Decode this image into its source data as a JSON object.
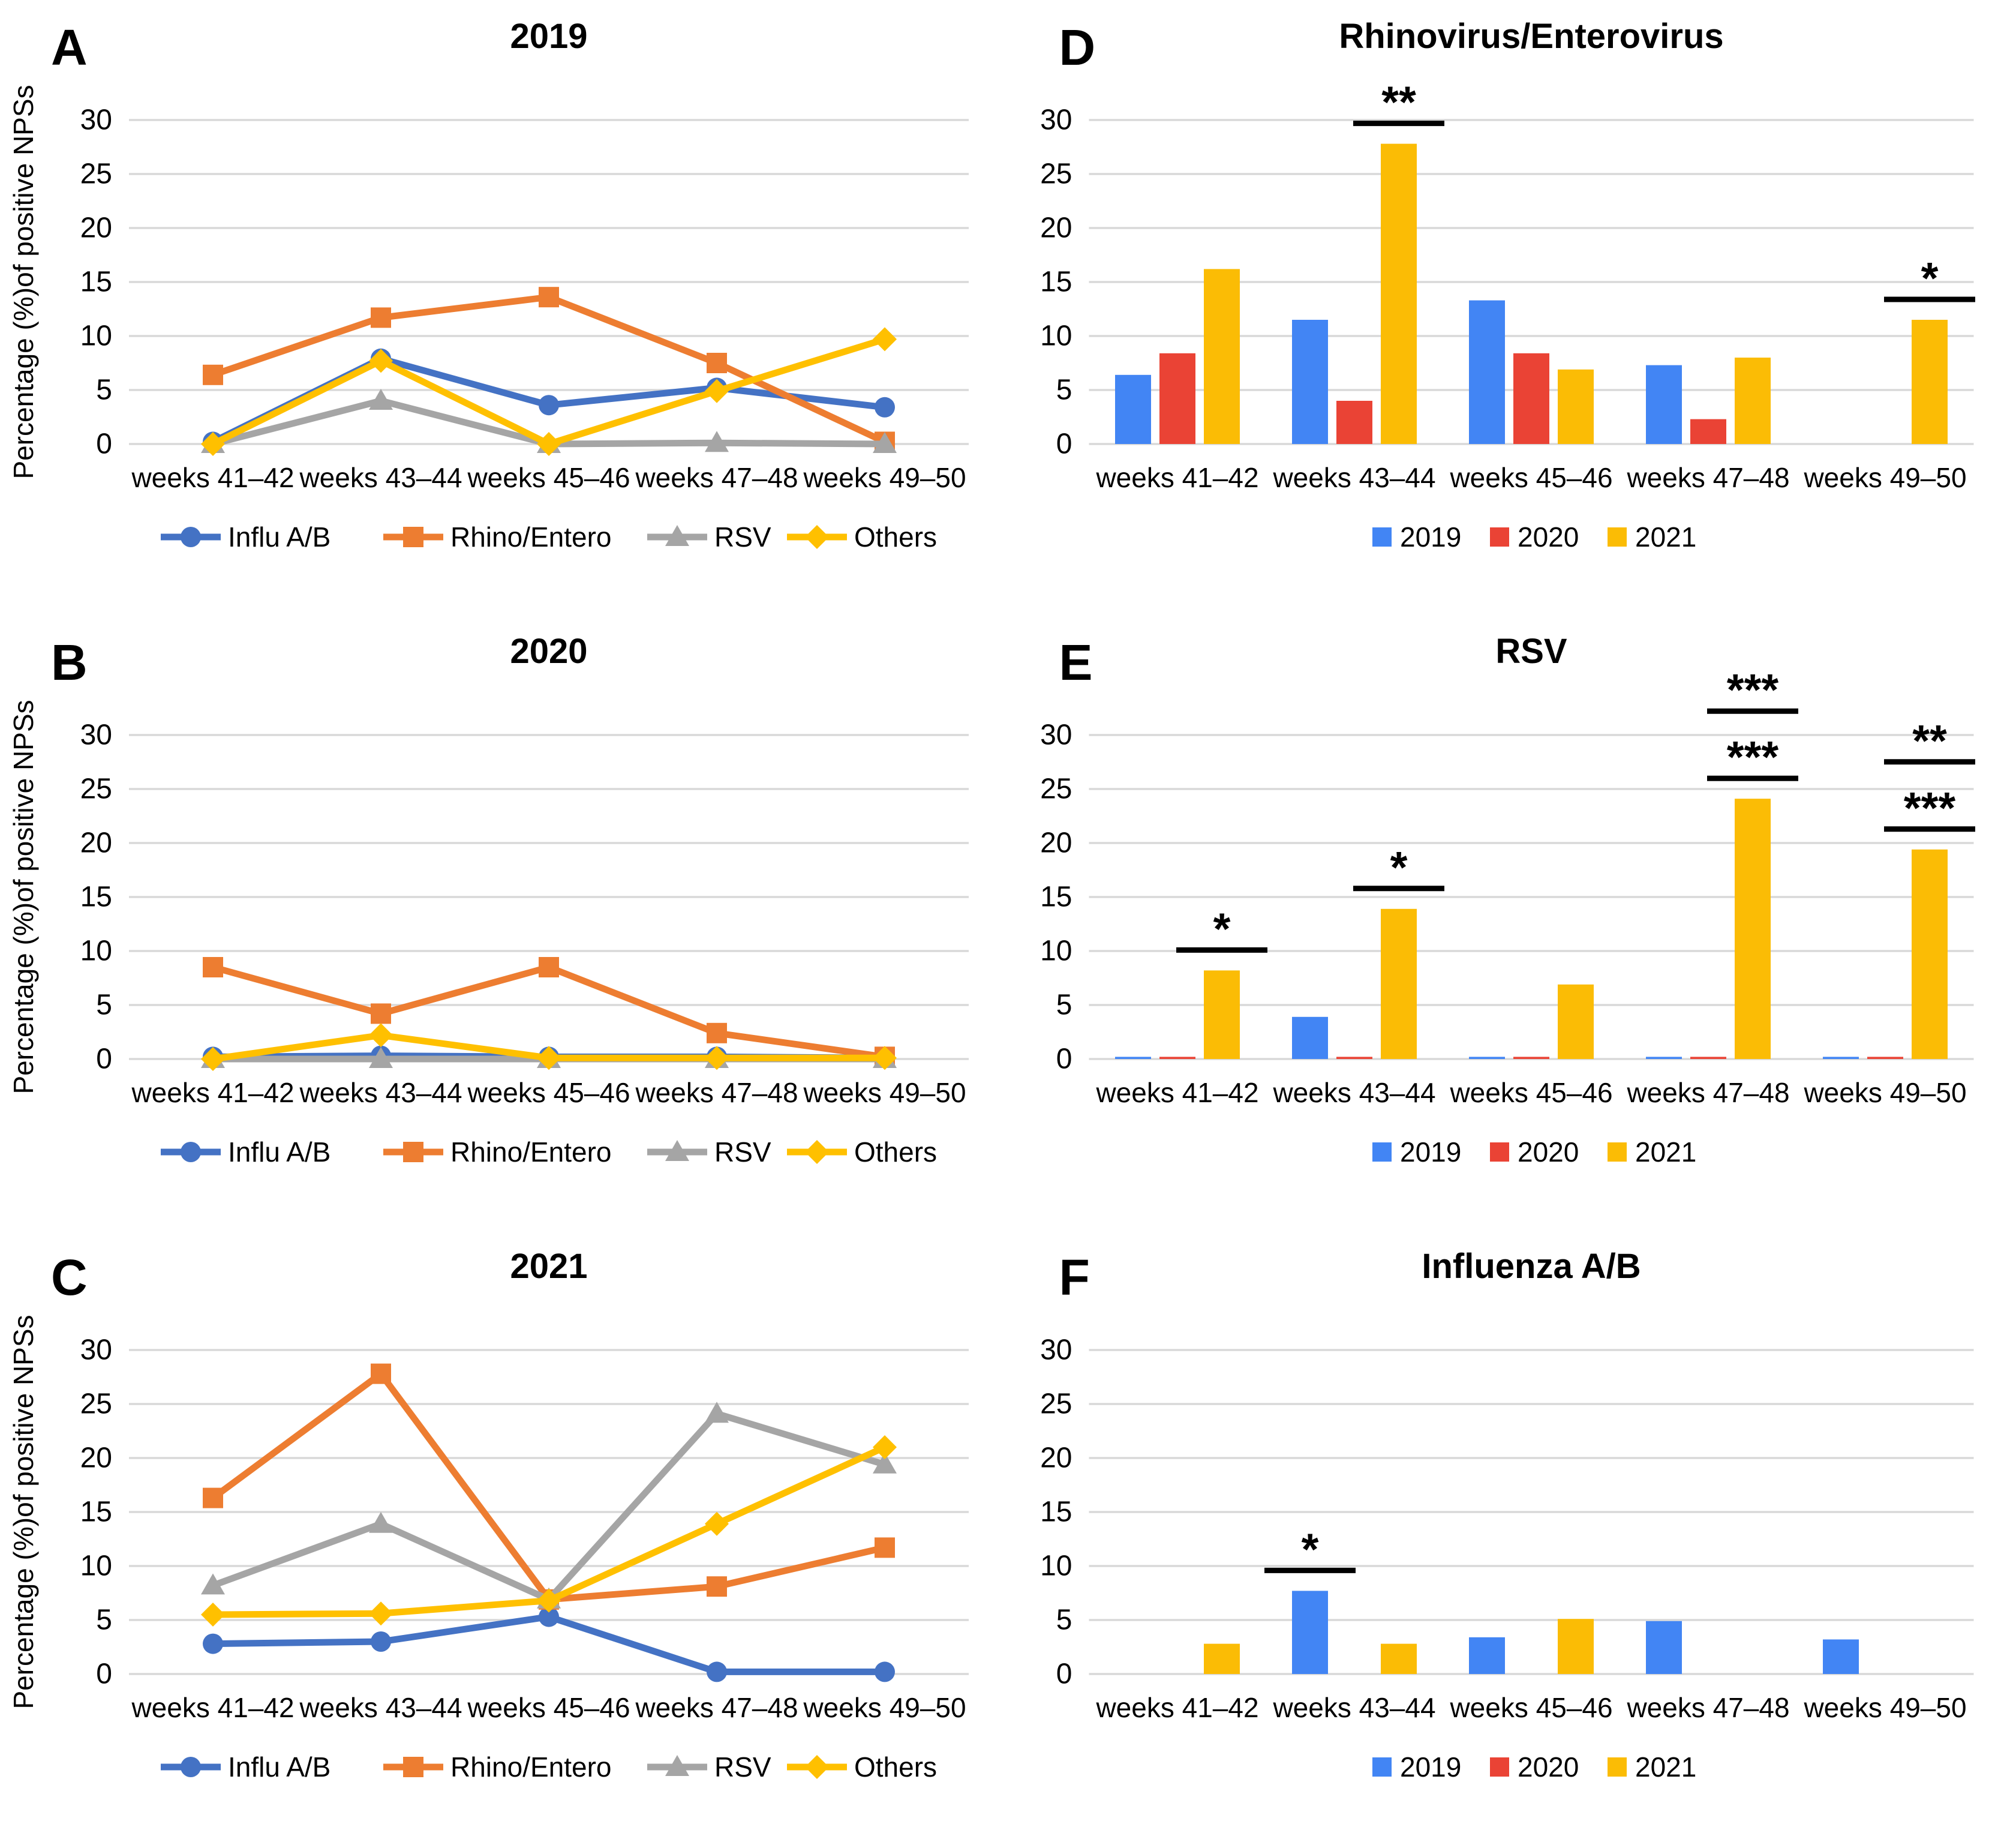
{
  "figure": {
    "description": "Six-panel figure of respiratory virus positivity",
    "categories": [
      "weeks 41–42",
      "weeks 43–44",
      "weeks 45–46",
      "weeks 47–48",
      "weeks 49–50"
    ],
    "colors": {
      "line_blue": "#4472C4",
      "line_orange": "#ED7D31",
      "line_gray": "#A5A5A5",
      "line_yellow": "#FFC000",
      "bar_blue": "#4285F4",
      "bar_red": "#EA4335",
      "bar_yellow": "#FBBC05",
      "gridline": "#D9D9D9",
      "text": "#000000"
    }
  },
  "chart_data": [
    {
      "panel_label": "A",
      "type": "line",
      "title": "2019",
      "ylabel": "Percentage (%)of positive NPSs",
      "ylim": [
        0,
        30
      ],
      "yticks": [
        0,
        5,
        10,
        15,
        20,
        25,
        30
      ],
      "grid": true,
      "legend_position": "bottom",
      "categories": [
        "weeks 41–42",
        "weeks 43–44",
        "weeks 45–46",
        "weeks 47–48",
        "weeks 49–50"
      ],
      "series": [
        {
          "name": "Influ A/B",
          "color": "#4472C4",
          "marker": "circle",
          "values": [
            0.2,
            7.9,
            3.6,
            5.2,
            3.4
          ]
        },
        {
          "name": "Rhino/Entero",
          "color": "#ED7D31",
          "marker": "square",
          "values": [
            6.4,
            11.7,
            13.6,
            7.5,
            0.2
          ]
        },
        {
          "name": "RSV",
          "color": "#A5A5A5",
          "marker": "triangle",
          "values": [
            0,
            4.0,
            0,
            0.1,
            0
          ]
        },
        {
          "name": "Others",
          "color": "#FFC000",
          "marker": "diamond",
          "values": [
            0,
            7.7,
            0,
            4.9,
            9.7
          ]
        }
      ]
    },
    {
      "panel_label": "B",
      "type": "line",
      "title": "2020",
      "ylabel": "Percentage (%)of positive NPSs",
      "ylim": [
        0,
        30
      ],
      "yticks": [
        0,
        5,
        10,
        15,
        20,
        25,
        30
      ],
      "grid": true,
      "legend_position": "bottom",
      "categories": [
        "weeks 41–42",
        "weeks 43–44",
        "weeks 45–46",
        "weeks 47–48",
        "weeks 49–50"
      ],
      "series": [
        {
          "name": "Influ A/B",
          "color": "#4472C4",
          "marker": "circle",
          "values": [
            0.2,
            0.3,
            0.2,
            0.2,
            0.1
          ]
        },
        {
          "name": "Rhino/Entero",
          "color": "#ED7D31",
          "marker": "square",
          "values": [
            8.5,
            4.2,
            8.5,
            2.4,
            0.2
          ]
        },
        {
          "name": "RSV",
          "color": "#A5A5A5",
          "marker": "triangle",
          "values": [
            0,
            0,
            0,
            0,
            0
          ]
        },
        {
          "name": "Others",
          "color": "#FFC000",
          "marker": "diamond",
          "values": [
            0,
            2.2,
            0.1,
            0.1,
            0.1
          ]
        }
      ]
    },
    {
      "panel_label": "C",
      "type": "line",
      "title": "2021",
      "ylabel": "Percentage (%)of positive NPSs",
      "ylim": [
        0,
        30
      ],
      "yticks": [
        0,
        5,
        10,
        15,
        20,
        25,
        30
      ],
      "grid": true,
      "legend_position": "bottom",
      "categories": [
        "weeks 41–42",
        "weeks 43–44",
        "weeks 45–46",
        "weeks 47–48",
        "weeks 49–50"
      ],
      "series": [
        {
          "name": "Influ A/B",
          "color": "#4472C4",
          "marker": "circle",
          "values": [
            2.8,
            3.0,
            5.3,
            0.2,
            0.2
          ]
        },
        {
          "name": "Rhino/Entero",
          "color": "#ED7D31",
          "marker": "square",
          "values": [
            16.3,
            27.8,
            6.9,
            8.1,
            11.7
          ]
        },
        {
          "name": "RSV",
          "color": "#A5A5A5",
          "marker": "triangle",
          "values": [
            8.2,
            13.9,
            6.9,
            24.1,
            19.4
          ]
        },
        {
          "name": "Others",
          "color": "#FFC000",
          "marker": "diamond",
          "values": [
            5.5,
            5.6,
            6.8,
            13.9,
            21.0
          ]
        }
      ]
    },
    {
      "panel_label": "D",
      "type": "bar",
      "title": "Rhinovirus/Enterovirus",
      "ylim": [
        0,
        30
      ],
      "yticks": [
        0,
        5,
        10,
        15,
        20,
        25,
        30
      ],
      "grid": true,
      "legend_position": "bottom",
      "categories": [
        "weeks 41–42",
        "weeks 43–44",
        "weeks 45–46",
        "weeks 47–48",
        "weeks 49–50"
      ],
      "series": [
        {
          "name": "2019",
          "color": "#4285F4",
          "values": [
            6.4,
            11.5,
            13.3,
            7.3,
            0
          ]
        },
        {
          "name": "2020",
          "color": "#EA4335",
          "values": [
            8.4,
            4.0,
            8.4,
            2.3,
            0
          ]
        },
        {
          "name": "2021",
          "color": "#FBBC05",
          "values": [
            16.2,
            27.8,
            6.9,
            8.0,
            11.5
          ]
        }
      ],
      "annotations": [
        {
          "category": 1,
          "series": 2,
          "labels": [
            "**"
          ]
        },
        {
          "category": 4,
          "series": 2,
          "labels": [
            "*"
          ]
        }
      ]
    },
    {
      "panel_label": "E",
      "type": "bar",
      "title": "RSV",
      "ylim": [
        0,
        30
      ],
      "yticks": [
        0,
        5,
        10,
        15,
        20,
        25,
        30
      ],
      "grid": true,
      "legend_position": "bottom",
      "categories": [
        "weeks 41–42",
        "weeks 43–44",
        "weeks 45–46",
        "weeks 47–48",
        "weeks 49–50"
      ],
      "series": [
        {
          "name": "2019",
          "color": "#4285F4",
          "values": [
            0.2,
            3.9,
            0.2,
            0.2,
            0.2
          ]
        },
        {
          "name": "2020",
          "color": "#EA4335",
          "values": [
            0.2,
            0.2,
            0.2,
            0.2,
            0.2
          ]
        },
        {
          "name": "2021",
          "color": "#FBBC05",
          "values": [
            8.2,
            13.9,
            6.9,
            24.1,
            19.4
          ]
        }
      ],
      "annotations": [
        {
          "category": 0,
          "series": 2,
          "labels": [
            "*"
          ]
        },
        {
          "category": 1,
          "series": 2,
          "labels": [
            "*"
          ]
        },
        {
          "category": 3,
          "series": 2,
          "labels": [
            "***",
            "***"
          ]
        },
        {
          "category": 4,
          "series": 2,
          "labels": [
            "***",
            "**"
          ]
        }
      ]
    },
    {
      "panel_label": "F",
      "type": "bar",
      "title": "Influenza A/B",
      "ylim": [
        0,
        30
      ],
      "yticks": [
        0,
        5,
        10,
        15,
        20,
        25,
        30
      ],
      "grid": true,
      "legend_position": "bottom",
      "categories": [
        "weeks 41–42",
        "weeks 43–44",
        "weeks 45–46",
        "weeks 47–48",
        "weeks 49–50"
      ],
      "series": [
        {
          "name": "2019",
          "color": "#4285F4",
          "values": [
            0,
            7.7,
            3.4,
            4.9,
            3.2
          ]
        },
        {
          "name": "2020",
          "color": "#EA4335",
          "values": [
            0,
            0,
            0,
            0,
            0
          ]
        },
        {
          "name": "2021",
          "color": "#FBBC05",
          "values": [
            2.8,
            2.8,
            5.1,
            0,
            0
          ]
        }
      ],
      "annotations": [
        {
          "category": 1,
          "series": 0,
          "labels": [
            "*"
          ]
        }
      ]
    }
  ]
}
